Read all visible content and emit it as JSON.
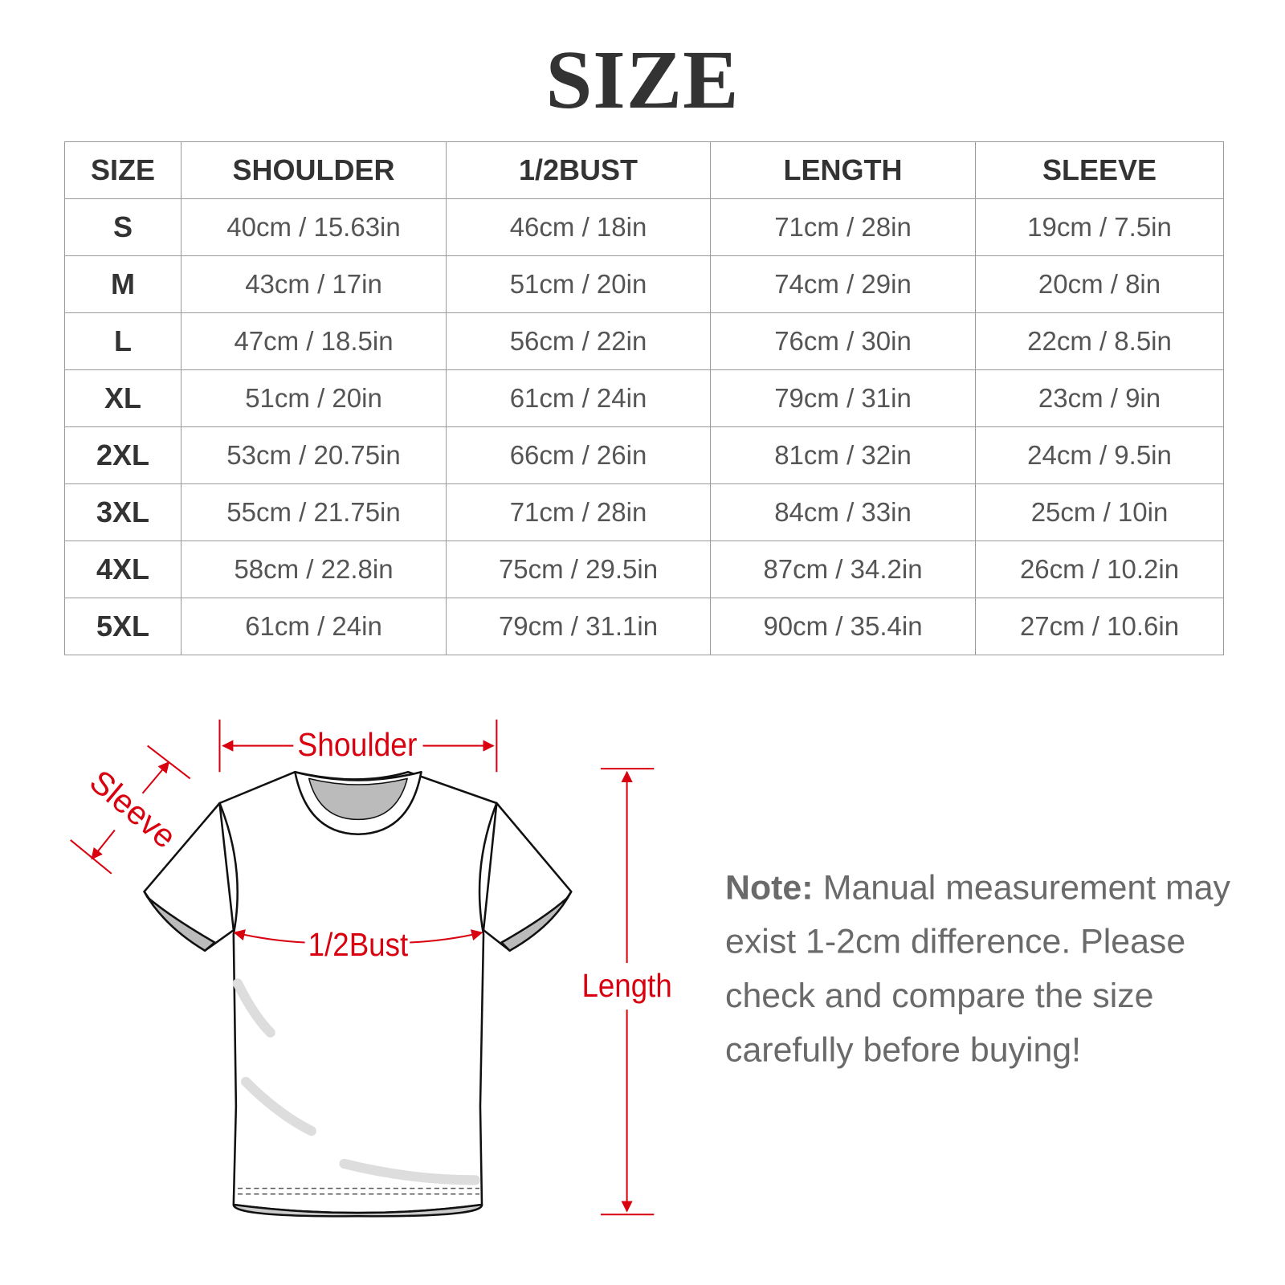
{
  "title": "SIZE",
  "table": {
    "headers": [
      "SIZE",
      "SHOULDER",
      "1/2BUST",
      "LENGTH",
      "SLEEVE"
    ],
    "rows": [
      [
        "S",
        "40cm / 15.63in",
        "46cm / 18in",
        "71cm / 28in",
        "19cm / 7.5in"
      ],
      [
        "M",
        "43cm / 17in",
        "51cm / 20in",
        "74cm / 29in",
        "20cm / 8in"
      ],
      [
        "L",
        "47cm / 18.5in",
        "56cm / 22in",
        "76cm / 30in",
        "22cm / 8.5in"
      ],
      [
        "XL",
        "51cm / 20in",
        "61cm / 24in",
        "79cm / 31in",
        "23cm / 9in"
      ],
      [
        "2XL",
        "53cm / 20.75in",
        "66cm / 26in",
        "81cm / 32in",
        "24cm / 9.5in"
      ],
      [
        "3XL",
        "55cm / 21.75in",
        "71cm / 28in",
        "84cm / 33in",
        "25cm / 10in"
      ],
      [
        "4XL",
        "58cm / 22.8in",
        "75cm / 29.5in",
        "87cm / 34.2in",
        "26cm / 10.2in"
      ],
      [
        "5XL",
        "61cm / 24in",
        "79cm / 31.1in",
        "90cm / 35.4in",
        "27cm / 10.6in"
      ]
    ]
  },
  "diagram": {
    "labels": {
      "shoulder": "Shoulder",
      "sleeve": "Sleeve",
      "bust": "1/2Bust",
      "length": "Length"
    },
    "accent_color": "#d9000f"
  },
  "note": {
    "label": "Note:",
    "lines": [
      "Manual measurement may",
      "exist 1-2cm difference. Please",
      "check and compare the size",
      "carefully before buying!"
    ]
  }
}
